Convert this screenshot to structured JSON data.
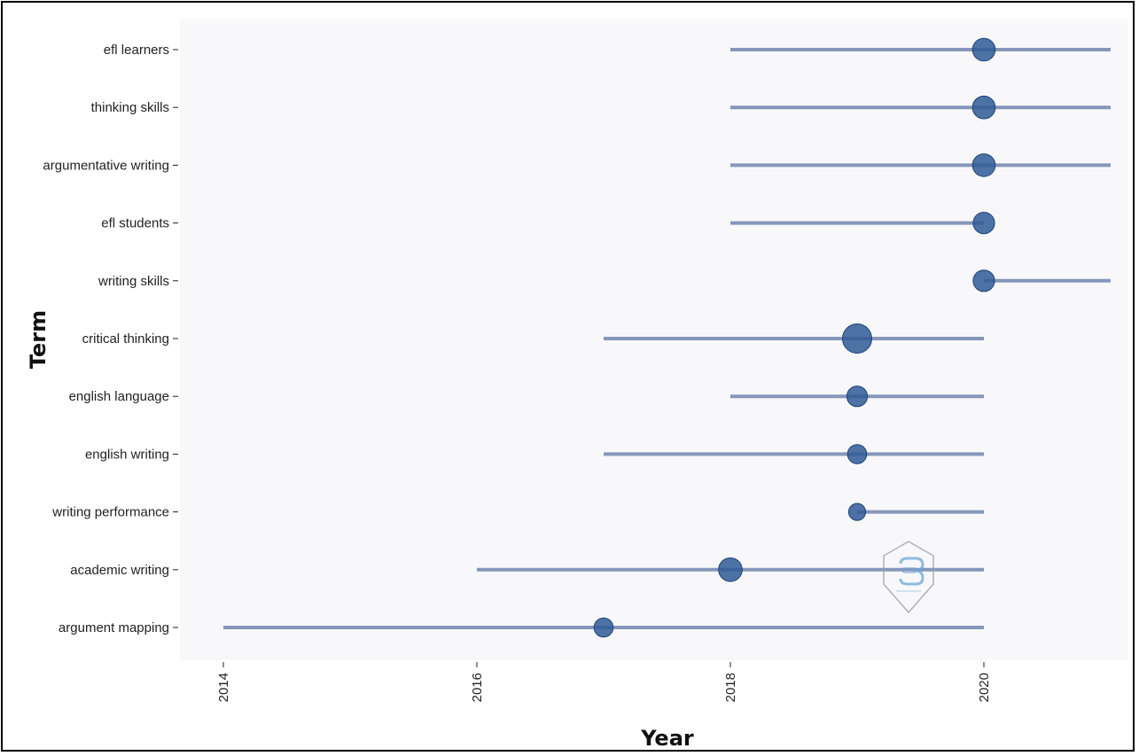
{
  "chart_data": {
    "type": "scatter",
    "xlabel": "Year",
    "ylabel": "Term",
    "xlim": [
      2014,
      2021
    ],
    "x_ticks": [
      2014,
      2016,
      2018,
      2020
    ],
    "grid": false,
    "colors": {
      "panel": "#f8f8fa",
      "line": "#8696bb",
      "point": "#2f5b95",
      "point_edge": "#1f4377"
    },
    "terms": [
      {
        "term": "efl learners",
        "start": 2018,
        "end": 2021,
        "peak": 2020,
        "frequency": 3
      },
      {
        "term": "thinking skills",
        "start": 2018,
        "end": 2021,
        "peak": 2020,
        "frequency": 3
      },
      {
        "term": "argumentative writing",
        "start": 2018,
        "end": 2021,
        "peak": 2020,
        "frequency": 3
      },
      {
        "term": "efl students",
        "start": 2018,
        "end": 2020,
        "peak": 2020,
        "frequency": 2.5
      },
      {
        "term": "writing skills",
        "start": 2020,
        "end": 2021,
        "peak": 2020,
        "frequency": 2.5
      },
      {
        "term": "critical thinking",
        "start": 2017,
        "end": 2020,
        "peak": 2019,
        "frequency": 6
      },
      {
        "term": "english language",
        "start": 2018,
        "end": 2020,
        "peak": 2019,
        "frequency": 2.2
      },
      {
        "term": "english writing",
        "start": 2017,
        "end": 2020,
        "peak": 2019,
        "frequency": 1.8
      },
      {
        "term": "writing performance",
        "start": 2019,
        "end": 2020,
        "peak": 2019,
        "frequency": 1.2
      },
      {
        "term": "academic writing",
        "start": 2016,
        "end": 2020,
        "peak": 2018,
        "frequency": 3.3
      },
      {
        "term": "argument mapping",
        "start": 2014,
        "end": 2020,
        "peak": 2017,
        "frequency": 1.8
      }
    ]
  },
  "watermark": {
    "icon": "hexagon-logo-icon"
  }
}
